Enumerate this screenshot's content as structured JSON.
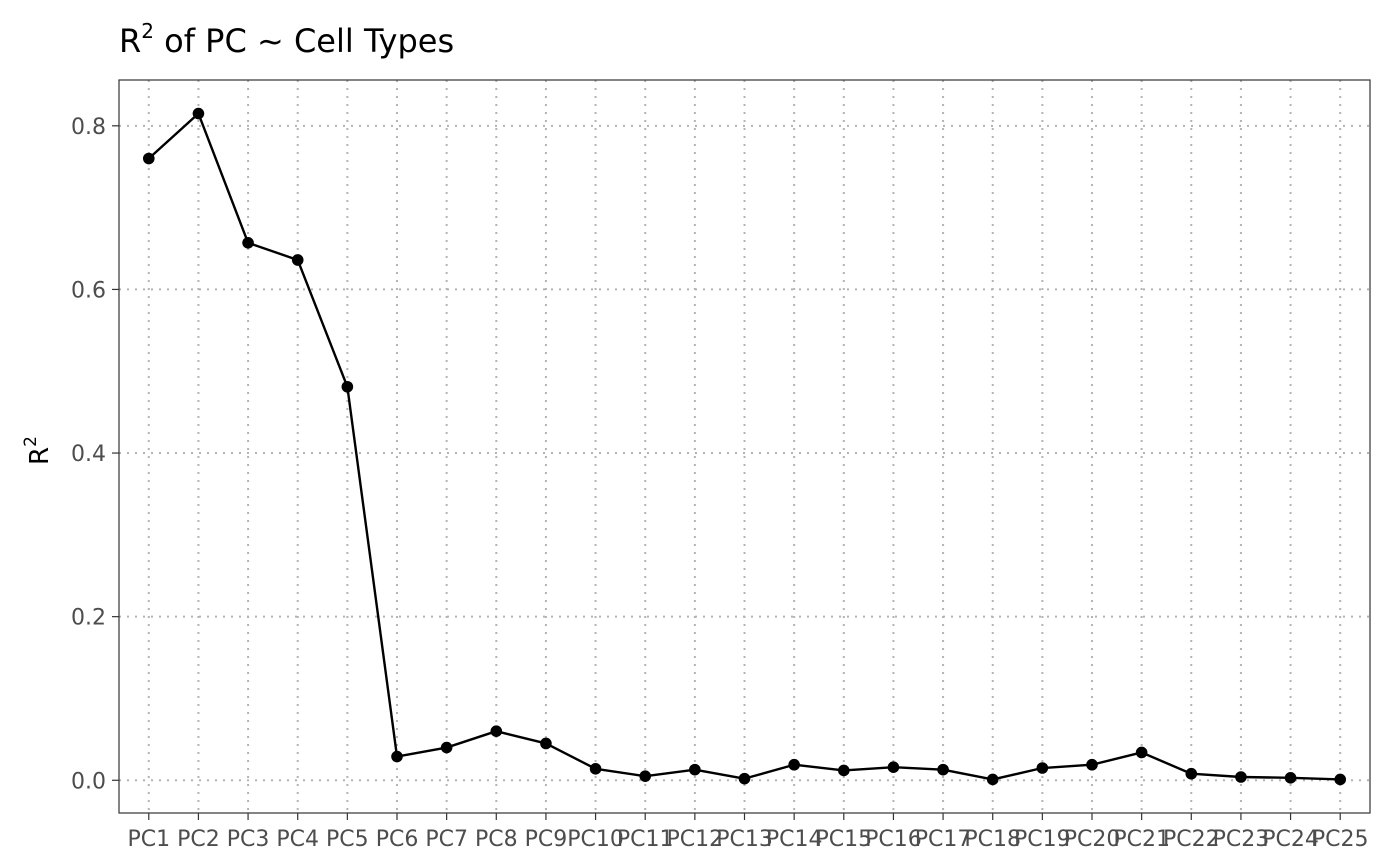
{
  "chart_data": {
    "type": "line",
    "title": {
      "base": "R",
      "sup": "2",
      "rest": " of PC ~  Cell Types"
    },
    "xlabel": "",
    "ylabel": {
      "base": "R",
      "sup": "2"
    },
    "categories": [
      "PC1",
      "PC2",
      "PC3",
      "PC4",
      "PC5",
      "PC6",
      "PC7",
      "PC8",
      "PC9",
      "PC10",
      "PC11",
      "PC12",
      "PC13",
      "PC14",
      "PC15",
      "PC16",
      "PC17",
      "PC18",
      "PC19",
      "PC20",
      "PC21",
      "PC22",
      "PC23",
      "PC24",
      "PC25"
    ],
    "values": [
      0.76,
      0.815,
      0.657,
      0.636,
      0.481,
      0.029,
      0.04,
      0.06,
      0.045,
      0.014,
      0.005,
      0.013,
      0.002,
      0.019,
      0.012,
      0.016,
      0.013,
      0.001,
      0.015,
      0.019,
      0.034,
      0.008,
      0.004,
      0.003,
      0.001
    ],
    "yticks": [
      "0.0",
      "0.2",
      "0.4",
      "0.6",
      "0.8"
    ],
    "ylim": [
      -0.04,
      0.856
    ],
    "grid": true,
    "grid_style": "dotted",
    "colors": {
      "line": "#000000",
      "point": "#000000",
      "grid": "#b3b3b3",
      "panel_border": "#333333",
      "tick_text": "#4d4d4d"
    }
  }
}
